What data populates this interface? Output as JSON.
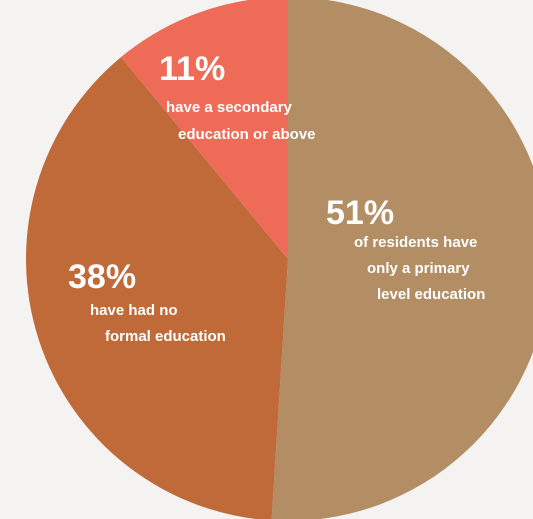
{
  "chart_data": {
    "type": "pie",
    "start": "12 o'clock, clockwise",
    "slices": [
      {
        "value": 51,
        "value_label": "51%",
        "label_lines": [
          "of residents have",
          "only a primary",
          "level education"
        ],
        "color": "#b38d63"
      },
      {
        "value": 38,
        "value_label": "38%",
        "label_lines": [
          "have had no",
          "formal education"
        ],
        "color": "#c06a39"
      },
      {
        "value": 11,
        "value_label": "11%",
        "label_lines": [
          "have a secondary",
          "education or above"
        ],
        "color": "#ee6b58"
      }
    ]
  }
}
